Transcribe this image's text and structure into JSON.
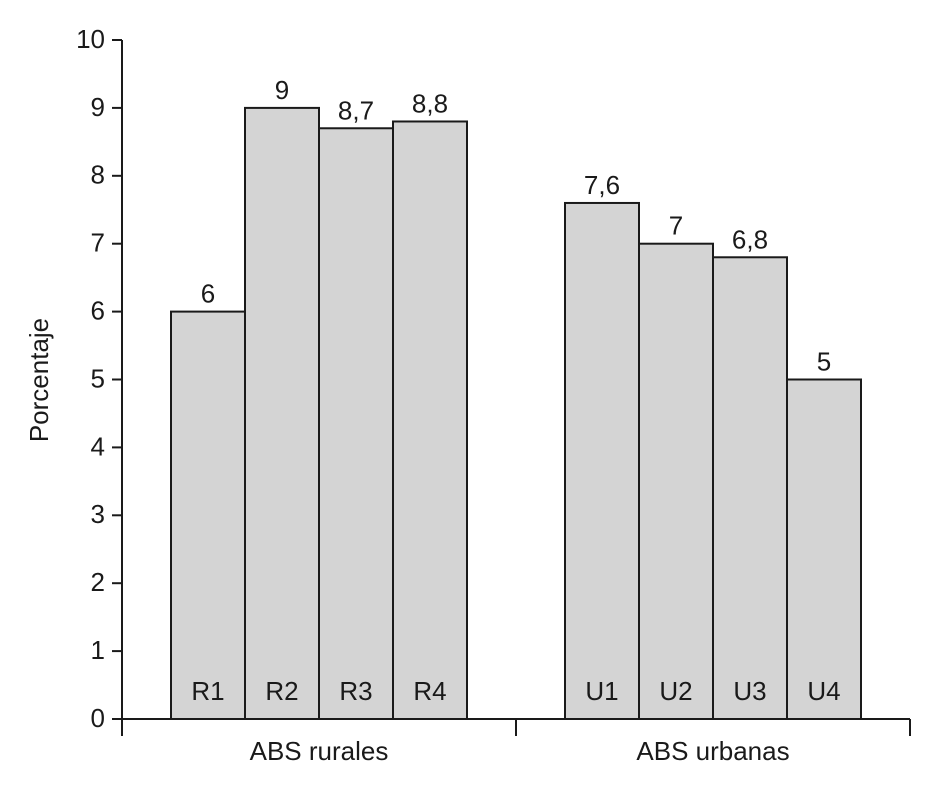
{
  "chart_data": {
    "type": "bar",
    "ylabel": "Porcentaje",
    "ylim": [
      0,
      10
    ],
    "yticks": [
      0,
      1,
      2,
      3,
      4,
      5,
      6,
      7,
      8,
      9,
      10
    ],
    "grid": false,
    "groups": [
      {
        "name": "ABS rurales",
        "categories": [
          "R1",
          "R2",
          "R3",
          "R4"
        ],
        "values": [
          6,
          9,
          8.7,
          8.8
        ],
        "value_labels": [
          "6",
          "9",
          "8,7",
          "8,8"
        ]
      },
      {
        "name": "ABS urbanas",
        "categories": [
          "U1",
          "U2",
          "U3",
          "U4"
        ],
        "values": [
          7.6,
          7,
          6.8,
          5
        ],
        "value_labels": [
          "7,6",
          "7",
          "6,8",
          "5"
        ]
      }
    ]
  },
  "colors": {
    "bar_fill": "#d4d4d4",
    "bar_stroke": "#1a1a1a",
    "text": "#1a1a1a"
  }
}
